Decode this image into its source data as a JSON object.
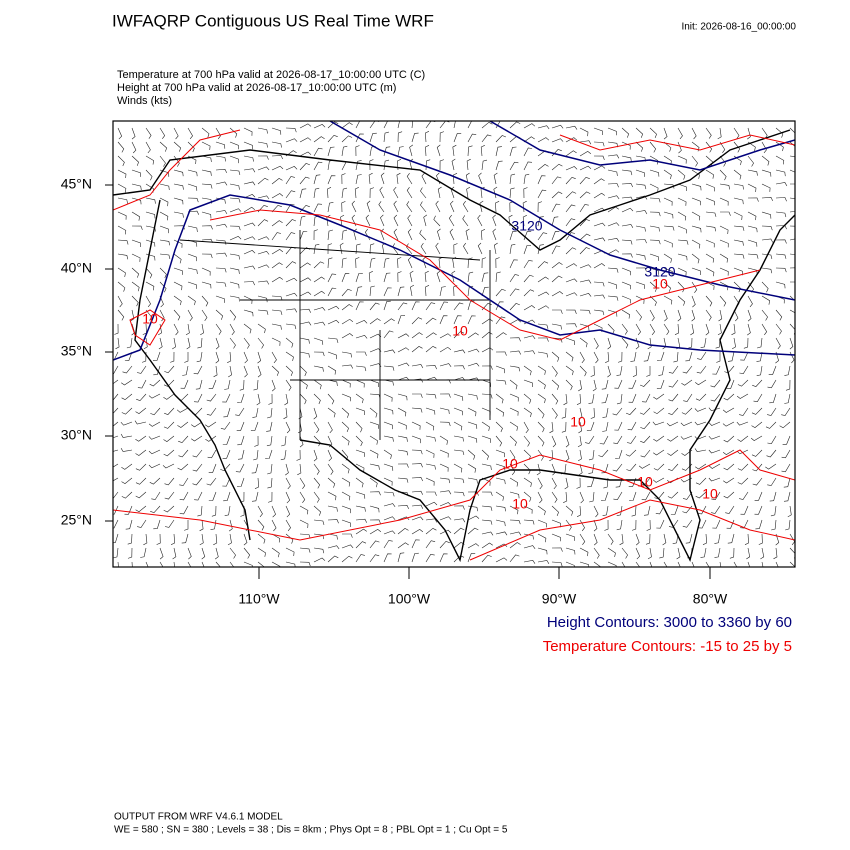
{
  "header": {
    "title": "IWFAQRP Contiguous US Real Time WRF",
    "init": "Init: 2026-08-16_00:00:00"
  },
  "fields": [
    "Temperature at 700 hPa valid at 2026-08-17_10:00:00 UTC   (C)",
    "Height at 700 hPa valid at 2026-08-17_10:00:00 UTC   (m)",
    "Winds   (kts)"
  ],
  "map": {
    "lat_labels": [
      "45°N",
      "40°N",
      "35°N",
      "30°N",
      "25°N"
    ],
    "lon_labels": [
      "110°W",
      "100°W",
      "90°W",
      "80°W"
    ],
    "height_labels": [
      "3120",
      "3120"
    ],
    "temperature_labels": [
      "10",
      "10",
      "10",
      "10",
      "10",
      "10",
      "10",
      "10"
    ]
  },
  "legend": [
    "Height Contours: 3000 to 3360 by 60",
    "Temperature Contours: -15 to 25 by 5"
  ],
  "footer": [
    "OUTPUT FROM WRF V4.6.1 MODEL",
    "WE = 580 ; SN = 380 ; Levels = 38 ; Dis = 8km ; Phys Opt = 8 ; PBL Opt = 1 ; Cu Opt = 5"
  ]
}
